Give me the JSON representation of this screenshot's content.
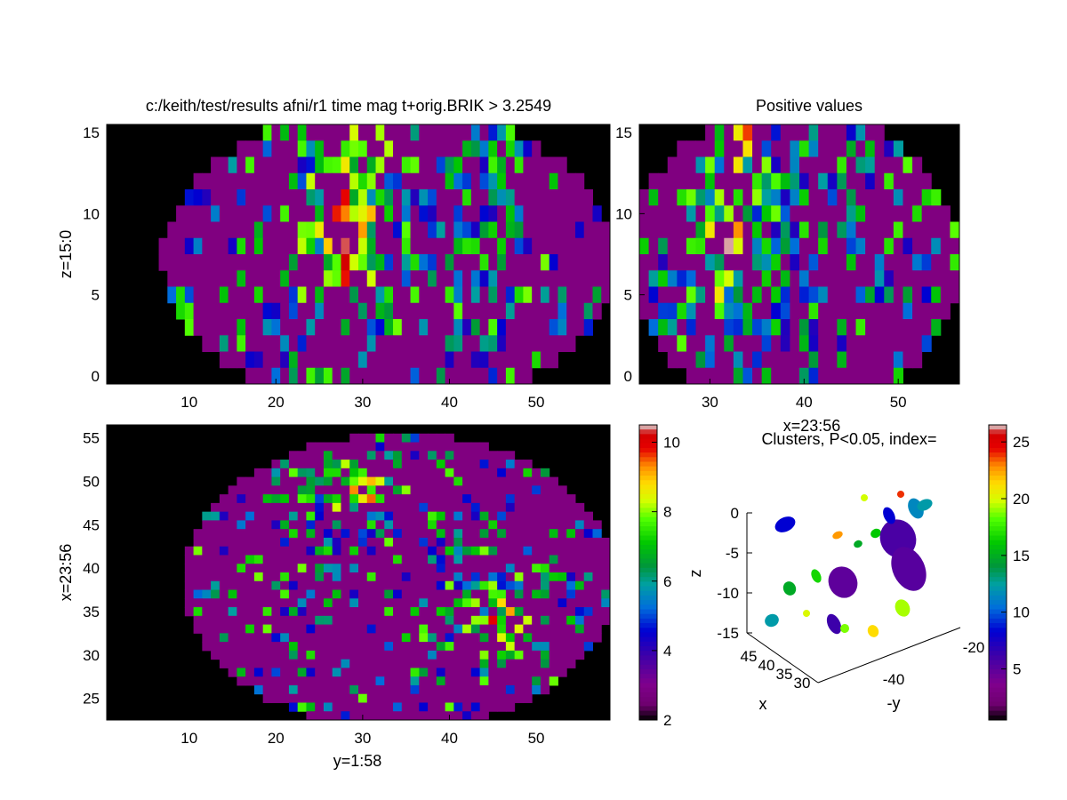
{
  "colors": {
    "background": "#000000",
    "fill": "#800080",
    "axis": "#000000"
  },
  "chart_data": [
    {
      "id": "axial",
      "type": "heatmap",
      "title": "c:/keith/test/results afni/r1 time mag t+orig.BRIK > 3.2549",
      "ylabel": "z=15:0",
      "xlabel": "",
      "xlim": [
        0.5,
        58.5
      ],
      "ylim": [
        15.5,
        -0.5
      ],
      "xticks": [
        "10",
        "20",
        "30",
        "40",
        "50"
      ],
      "yticks": [
        "0",
        "5",
        "10",
        "15"
      ]
    },
    {
      "id": "sagittal",
      "type": "heatmap",
      "title": "Positive values",
      "xlabel": "x=23:56",
      "ylabel": "",
      "xlim": [
        22.5,
        56.5
      ],
      "ylim": [
        15.5,
        -0.5
      ],
      "xticks": [
        "30",
        "40",
        "50"
      ],
      "yticks": [
        "0",
        "5",
        "10",
        "15"
      ]
    },
    {
      "id": "coronal",
      "type": "heatmap",
      "title": "",
      "xlabel": "y=1:58",
      "ylabel": "x=23:56",
      "xlim": [
        0.5,
        58.5
      ],
      "ylim": [
        56.5,
        22.5
      ],
      "xticks": [
        "10",
        "20",
        "30",
        "40",
        "50"
      ],
      "yticks": [
        "25",
        "30",
        "35",
        "40",
        "45",
        "50",
        "55"
      ]
    },
    {
      "id": "colorbar-t",
      "type": "heatmap",
      "title": "",
      "range": [
        2,
        10.5
      ],
      "ticks": [
        "2",
        "4",
        "6",
        "8",
        "10"
      ]
    },
    {
      "id": "clusters",
      "type": "scatter",
      "title": "Clusters, P<0.05, index=",
      "xlabel": "x",
      "ylabel": "-y",
      "zlabel": "z",
      "zticks": [
        "0",
        "-5",
        "-10",
        "-15"
      ],
      "xticks": [
        "45",
        "40",
        "35",
        "30"
      ],
      "yticks": [
        "-40",
        "-20"
      ]
    },
    {
      "id": "colorbar-index",
      "type": "heatmap",
      "title": "",
      "range": [
        0.5,
        26.5
      ],
      "ticks": [
        "5",
        "10",
        "15",
        "20",
        "25"
      ]
    }
  ]
}
